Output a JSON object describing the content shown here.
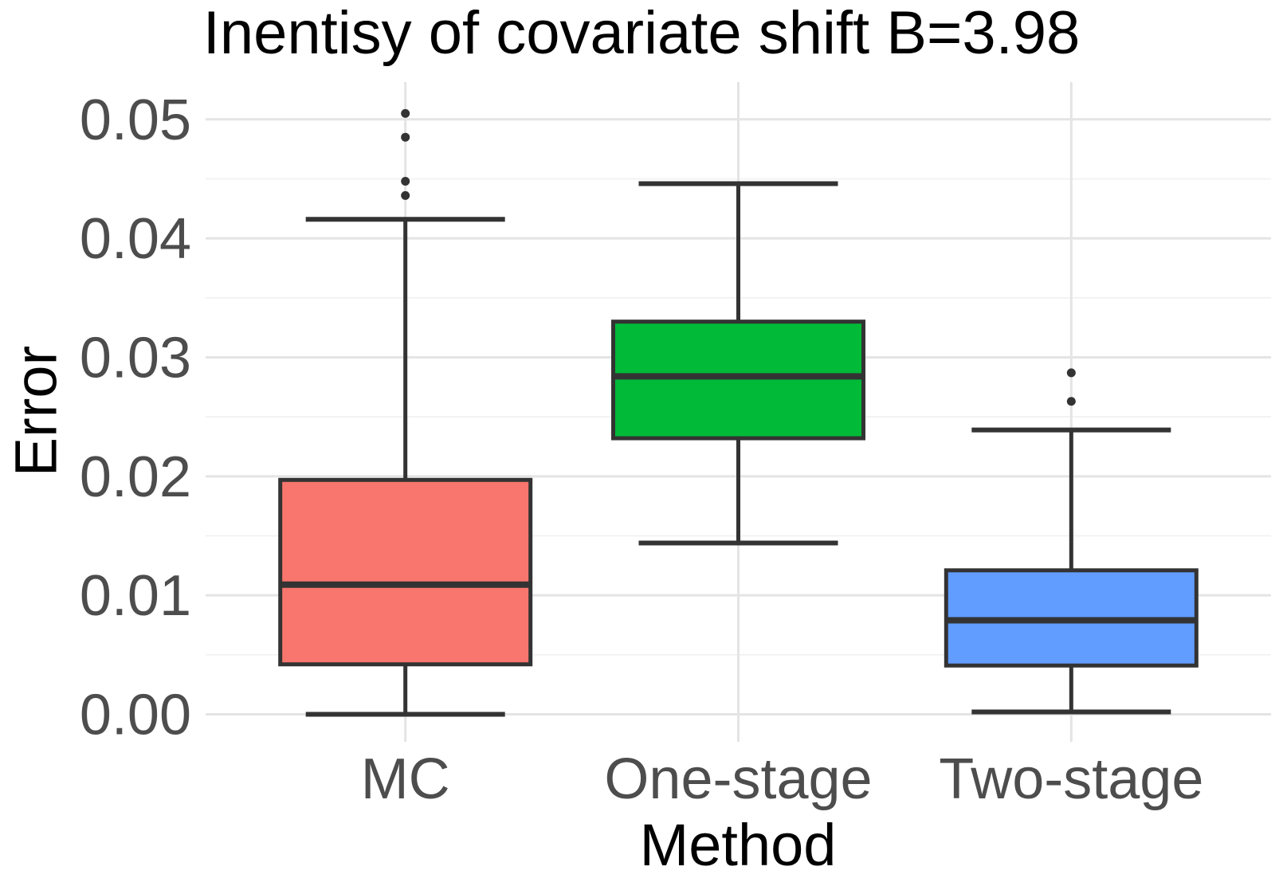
{
  "title": "Inentisy of covariate shift B=3.98",
  "chart_data": {
    "type": "boxplot",
    "title": "Inentisy of covariate shift B=3.98",
    "xlabel": "Method",
    "ylabel": "Error",
    "categories": [
      "MC",
      "One-stage",
      "Two-stage"
    ],
    "y_ticks": [
      {
        "value": 0.0,
        "label": "0.00"
      },
      {
        "value": 0.01,
        "label": "0.01"
      },
      {
        "value": 0.02,
        "label": "0.02"
      },
      {
        "value": 0.03,
        "label": "0.03"
      },
      {
        "value": 0.04,
        "label": "0.04"
      },
      {
        "value": 0.05,
        "label": "0.05"
      }
    ],
    "y_minor_ticks": [
      0.005,
      0.015,
      0.025,
      0.035,
      0.045
    ],
    "ylim": [
      0.0,
      0.05
    ],
    "grid": "horizontal major+minor, vertical major at each category, no axis lines",
    "legend": "none",
    "series": [
      {
        "name": "MC",
        "fill": "#F8766D",
        "whisker_low": 0.0,
        "q1": 0.0042,
        "median": 0.0109,
        "q3": 0.0197,
        "whisker_high": 0.0416,
        "outliers": [
          0.0436,
          0.0448,
          0.0485,
          0.0505
        ]
      },
      {
        "name": "One-stage",
        "fill": "#00BA38",
        "whisker_low": 0.0144,
        "q1": 0.0232,
        "median": 0.0284,
        "q3": 0.033,
        "whisker_high": 0.0446,
        "outliers": []
      },
      {
        "name": "Two-stage",
        "fill": "#619CFF",
        "whisker_low": 0.0002,
        "q1": 0.0041,
        "median": 0.0079,
        "q3": 0.0121,
        "whisker_high": 0.0239,
        "outliers": [
          0.0263,
          0.0287
        ]
      }
    ],
    "styles": {
      "box_border_color": "#333333",
      "median_color": "#333333",
      "whisker_color": "#333333",
      "outlier_color": "#333333",
      "grid_major_color": "#E4E4E4",
      "grid_minor_color": "#F1F1F1",
      "tick_label_color": "#4D4D4D",
      "title_color": "#000000",
      "background": "#FFFFFF"
    }
  }
}
